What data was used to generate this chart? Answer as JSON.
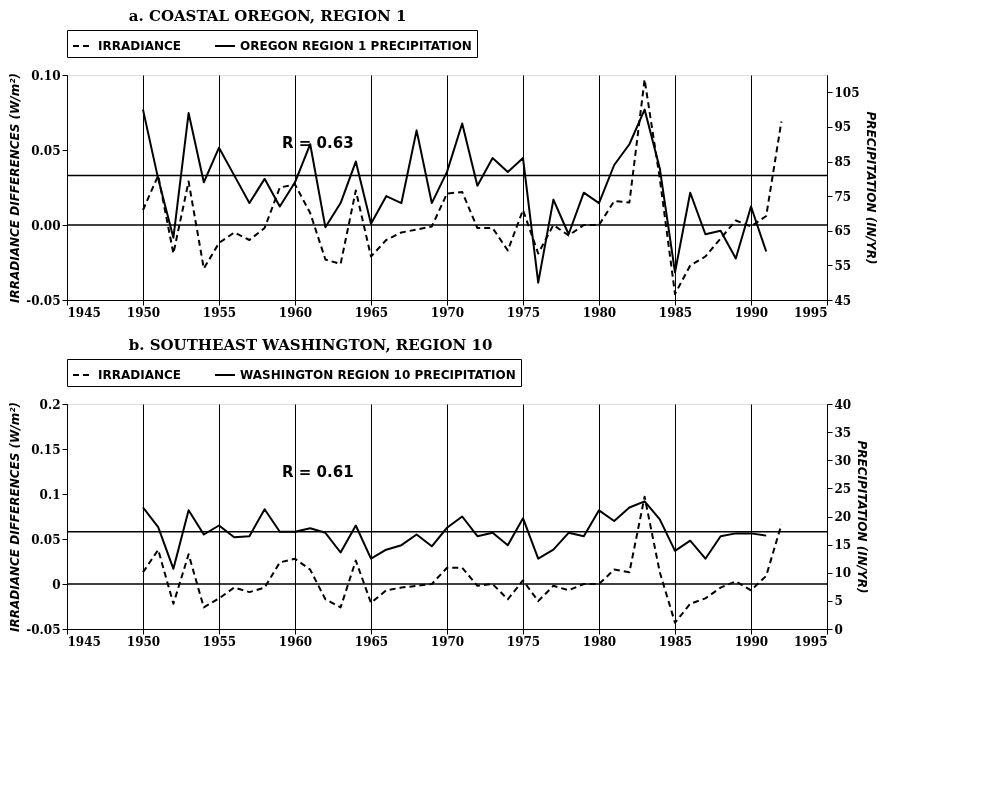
{
  "chart_data": [
    {
      "type": "line",
      "title": "a.    COASTAL OREGON, REGION 1",
      "ylabel": "IRRADIANCE DIFFERENCES (W/m²)",
      "y2label": "PRECIPITATION (IN/YR)",
      "x": [
        1950,
        1951,
        1952,
        1953,
        1954,
        1955,
        1956,
        1957,
        1958,
        1959,
        1960,
        1961,
        1962,
        1963,
        1964,
        1965,
        1966,
        1967,
        1968,
        1969,
        1970,
        1971,
        1972,
        1973,
        1974,
        1975,
        1976,
        1977,
        1978,
        1979,
        1980,
        1981,
        1982,
        1983,
        1984,
        1985,
        1986,
        1987,
        1988,
        1989,
        1990,
        1991,
        1992
      ],
      "series": [
        {
          "name": "IRRADIANCE",
          "color": "#000000",
          "line_style": "dashed",
          "values": [
            0.01,
            0.033,
            -0.019,
            0.029,
            -0.029,
            -0.012,
            -0.005,
            -0.01,
            -0.002,
            0.025,
            0.027,
            0.008,
            -0.023,
            -0.026,
            0.023,
            -0.021,
            -0.01,
            -0.005,
            -0.003,
            -0.001,
            0.021,
            0.022,
            -0.002,
            -0.002,
            -0.017,
            0.01,
            -0.019,
            0.0,
            -0.007,
            0.0,
            0.0,
            0.016,
            0.015,
            0.097,
            0.031,
            -0.046,
            -0.027,
            -0.021,
            -0.009,
            0.003,
            -0.001,
            0.006,
            0.069
          ]
        },
        {
          "name": "OREGON REGION 1 PRECIPITATION",
          "color": "#000000",
          "line_style": "solid",
          "axis": "y2",
          "values": [
            100,
            80,
            63,
            99,
            79,
            89,
            81,
            73,
            80,
            72,
            79,
            90,
            66,
            73,
            85,
            67,
            75,
            73,
            94,
            73,
            82,
            96,
            78,
            86,
            82,
            86,
            50,
            74,
            64,
            76,
            73,
            84,
            90,
            100,
            83,
            53,
            76,
            64,
            65,
            57,
            72,
            59,
            null
          ]
        }
      ],
      "xlim": [
        1945,
        1995
      ],
      "xticks": [
        1945,
        1950,
        1955,
        1960,
        1965,
        1970,
        1975,
        1980,
        1985,
        1990,
        1995
      ],
      "ylim": [
        -0.05,
        0.1
      ],
      "yticks": [
        {
          "value": -0.05,
          "label": "-0.05"
        },
        {
          "value": 0,
          "label": "0.00"
        },
        {
          "value": 0.05,
          "label": "0.05"
        },
        {
          "value": 0.1,
          "label": "0.10"
        }
      ],
      "y2lim": [
        45,
        110
      ],
      "y2ticks": [
        45,
        55,
        65,
        75,
        85,
        95,
        105
      ],
      "ref_lines": [
        {
          "axis": "y",
          "value": 0,
          "color": "#000000"
        },
        {
          "axis": "y2",
          "value": 81,
          "color": "#000000"
        }
      ],
      "grid": "x",
      "legend": "top",
      "annotations": [
        "R = 0.63"
      ]
    },
    {
      "type": "line",
      "title": "b.    SOUTHEAST WASHINGTON, REGION 10",
      "ylabel": "IRRADIANCE DIFFERENCES (W/m²)",
      "y2label": "PRECIPITATION (IN/YR)",
      "x": [
        1950,
        1951,
        1952,
        1953,
        1954,
        1955,
        1956,
        1957,
        1958,
        1959,
        1960,
        1961,
        1962,
        1963,
        1964,
        1965,
        1966,
        1967,
        1968,
        1969,
        1970,
        1971,
        1972,
        1973,
        1974,
        1975,
        1976,
        1977,
        1978,
        1979,
        1980,
        1981,
        1982,
        1983,
        1984,
        1985,
        1986,
        1987,
        1988,
        1989,
        1990,
        1991,
        1992
      ],
      "series": [
        {
          "name": "IRRADIANCE",
          "color": "#000000",
          "line_style": "dashed",
          "values": [
            0.013,
            0.038,
            -0.022,
            0.033,
            -0.026,
            -0.016,
            -0.004,
            -0.009,
            -0.004,
            0.024,
            0.028,
            0.016,
            -0.017,
            -0.026,
            0.026,
            -0.021,
            -0.007,
            -0.004,
            -0.002,
            0.0,
            0.018,
            0.018,
            -0.002,
            0.0,
            -0.017,
            0.004,
            -0.019,
            -0.002,
            -0.007,
            0.0,
            0.0,
            0.016,
            0.013,
            0.097,
            0.013,
            -0.043,
            -0.022,
            -0.016,
            -0.004,
            0.003,
            -0.007,
            0.009,
            0.066
          ]
        },
        {
          "name": "WASHINGTON REGION 10 PRECIPITATION",
          "color": "#000000",
          "line_style": "solid",
          "axis": "y2",
          "values": [
            21.6,
            18.1,
            10.7,
            21.1,
            16.8,
            18.4,
            16.3,
            16.5,
            21.3,
            17.3,
            17.3,
            17.9,
            17.1,
            13.6,
            18.4,
            12.5,
            14.1,
            14.9,
            16.8,
            14.7,
            18,
            20,
            16.5,
            17.1,
            14.9,
            19.7,
            12.5,
            14.1,
            17.1,
            16.5,
            21.1,
            19.2,
            21.6,
            22.7,
            19.5,
            13.9,
            15.7,
            12.5,
            16.5,
            17,
            17,
            16.6,
            null
          ]
        }
      ],
      "xlim": [
        1945,
        1995
      ],
      "xticks": [
        1945,
        1950,
        1955,
        1960,
        1965,
        1970,
        1975,
        1980,
        1985,
        1990,
        1995
      ],
      "ylim": [
        -0.05,
        0.2
      ],
      "yticks": [
        -0.05,
        0,
        0.05,
        0.1,
        0.15,
        0.2
      ],
      "y2lim": [
        0,
        40
      ],
      "y2ticks": [
        0,
        5,
        10,
        15,
        20,
        25,
        30,
        35,
        40
      ],
      "ref_lines": [
        {
          "axis": "y",
          "value": 0,
          "color": "#000000"
        },
        {
          "axis": "y2",
          "value": 17.3,
          "color": "#000000"
        }
      ],
      "grid": "x",
      "legend": "top",
      "annotations": [
        "R = 0.61"
      ]
    }
  ]
}
